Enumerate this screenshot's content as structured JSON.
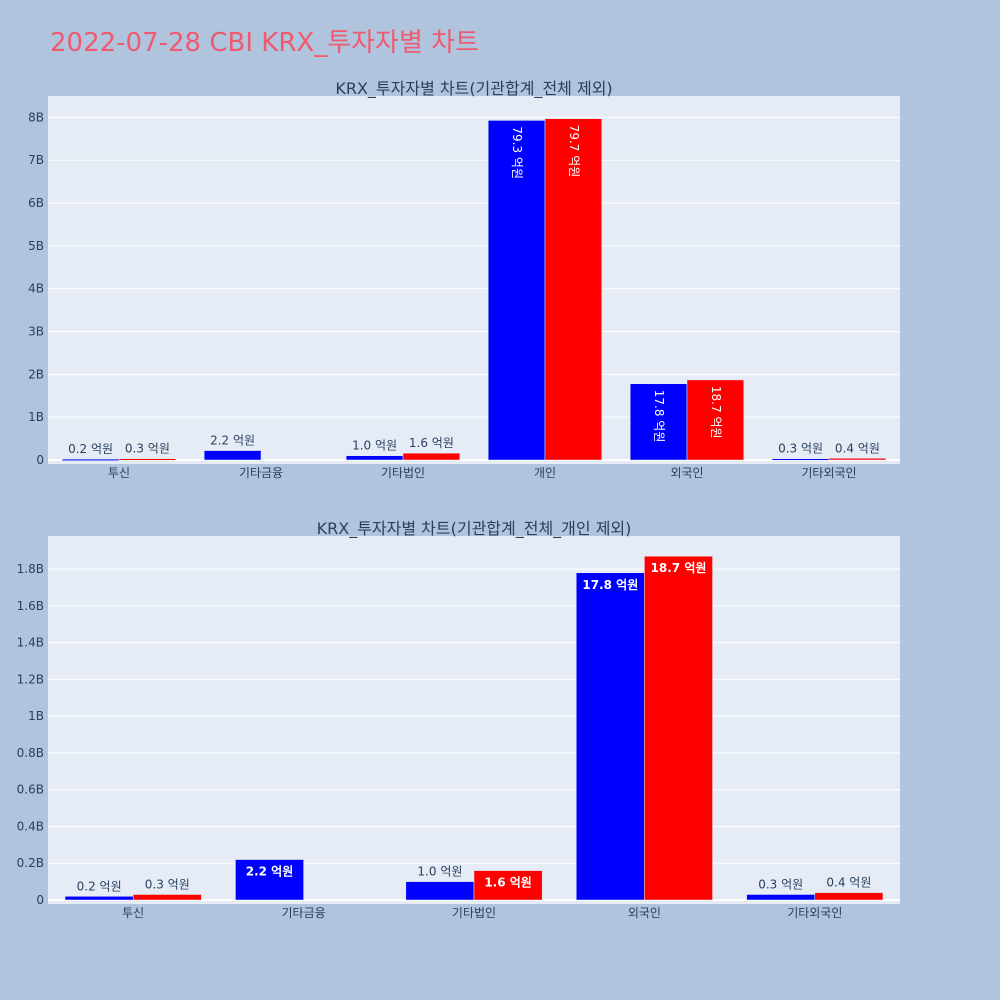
{
  "title": "2022-07-28 CBI KRX_투자자별 차트",
  "colors": {
    "buy": "#0000ff",
    "sell": "#ff0000"
  },
  "chart_data": [
    {
      "type": "bar",
      "title": "KRX_투자자별 차트(기관합계_전체 제외)",
      "categories": [
        "투신",
        "기타금융",
        "기타법인",
        "개인",
        "외국인",
        "기타외국인"
      ],
      "ylim": [
        0,
        8500000000
      ],
      "yticks": [
        {
          "value": 0,
          "label": "0"
        },
        {
          "value": 1000000000,
          "label": "1B"
        },
        {
          "value": 2000000000,
          "label": "2B"
        },
        {
          "value": 3000000000,
          "label": "3B"
        },
        {
          "value": 4000000000,
          "label": "4B"
        },
        {
          "value": 5000000000,
          "label": "5B"
        },
        {
          "value": 6000000000,
          "label": "6B"
        },
        {
          "value": 7000000000,
          "label": "7B"
        },
        {
          "value": 8000000000,
          "label": "8B"
        }
      ],
      "grid": true,
      "series": [
        {
          "color": "#0000ff",
          "values": [
            20000000,
            220000000,
            100000000,
            7930000000,
            1780000000,
            30000000
          ],
          "labels": [
            "0.2 억원",
            "2.2 억원",
            "1.0 억원",
            "79.3 억원",
            "17.8 억원",
            "0.3 억원"
          ]
        },
        {
          "color": "#ff0000",
          "values": [
            30000000,
            0,
            160000000,
            7970000000,
            1870000000,
            40000000
          ],
          "labels": [
            "0.3 억원",
            "",
            "1.6 억원",
            "79.7 억원",
            "18.7 억원",
            "0.4 억원"
          ]
        }
      ]
    },
    {
      "type": "bar",
      "title": "KRX_투자자별 차트(기관합계_전체_개인 제외)",
      "categories": [
        "투신",
        "기타금융",
        "기타법인",
        "외국인",
        "기타외국인"
      ],
      "ylim": [
        0,
        1980000000
      ],
      "yticks": [
        {
          "value": 0,
          "label": "0"
        },
        {
          "value": 200000000,
          "label": "0.2B"
        },
        {
          "value": 400000000,
          "label": "0.4B"
        },
        {
          "value": 600000000,
          "label": "0.6B"
        },
        {
          "value": 800000000,
          "label": "0.8B"
        },
        {
          "value": 1000000000,
          "label": "1B"
        },
        {
          "value": 1200000000,
          "label": "1.2B"
        },
        {
          "value": 1400000000,
          "label": "1.4B"
        },
        {
          "value": 1600000000,
          "label": "1.6B"
        },
        {
          "value": 1800000000,
          "label": "1.8B"
        }
      ],
      "grid": true,
      "series": [
        {
          "color": "#0000ff",
          "values": [
            20000000,
            220000000,
            100000000,
            1780000000,
            30000000
          ],
          "labels": [
            "0.2 억원",
            "2.2 억원",
            "1.0 억원",
            "17.8 억원",
            "0.3 억원"
          ]
        },
        {
          "color": "#ff0000",
          "values": [
            30000000,
            0,
            160000000,
            1870000000,
            40000000
          ],
          "labels": [
            "0.3 억원",
            "",
            "1.6 억원",
            "18.7 억원",
            "0.4 억원"
          ]
        }
      ]
    }
  ]
}
